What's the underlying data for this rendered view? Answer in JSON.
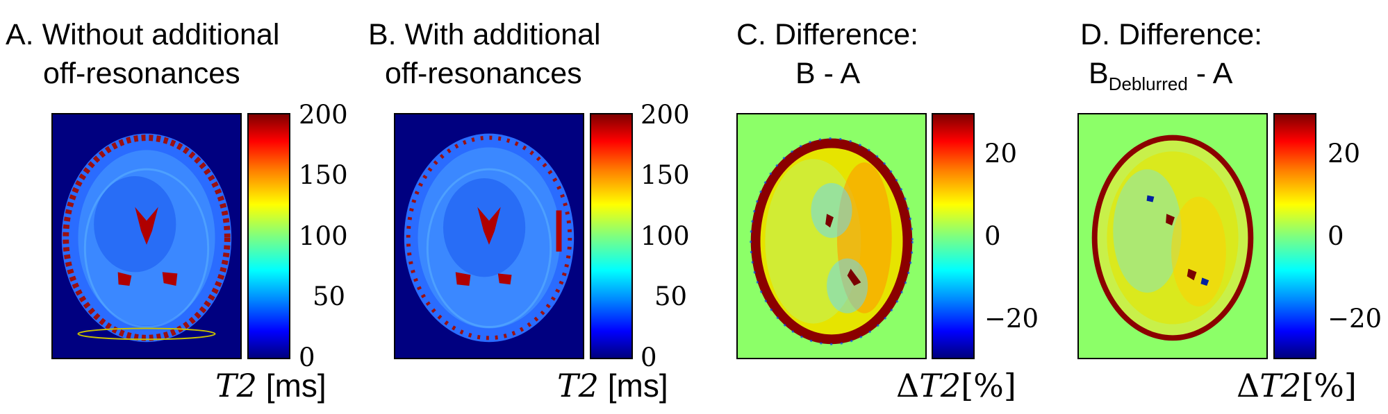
{
  "panels": [
    {
      "title_line1": "A. Without additional",
      "title_line2": "off-resonances",
      "ticks": [
        "200",
        "150",
        "100",
        "50",
        "0"
      ],
      "unit_var": "T2",
      "unit_label": "[ms]"
    },
    {
      "title_line1": "B. With additional",
      "title_line2": "off-resonances",
      "ticks": [
        "200",
        "150",
        "100",
        "50",
        "0"
      ],
      "unit_var": "T2",
      "unit_label": "[ms]"
    },
    {
      "title_line1": "C. Difference:",
      "title_line2": "B - A",
      "ticks": [
        "20",
        "0",
        "−20"
      ],
      "unit_delta": "Δ",
      "unit_var": "T2",
      "unit_label": "[%]"
    },
    {
      "title_line1": "D. Difference:",
      "title_line2_main": "B",
      "title_line2_sub": "Deblurred",
      "title_line2_tail": " - A",
      "ticks": [
        "20",
        "0",
        "−20"
      ],
      "unit_delta": "Δ",
      "unit_var": "T2",
      "unit_label": "[%]"
    }
  ],
  "colors": {
    "background_blue": "#000080",
    "background_green": "#8cff68"
  }
}
